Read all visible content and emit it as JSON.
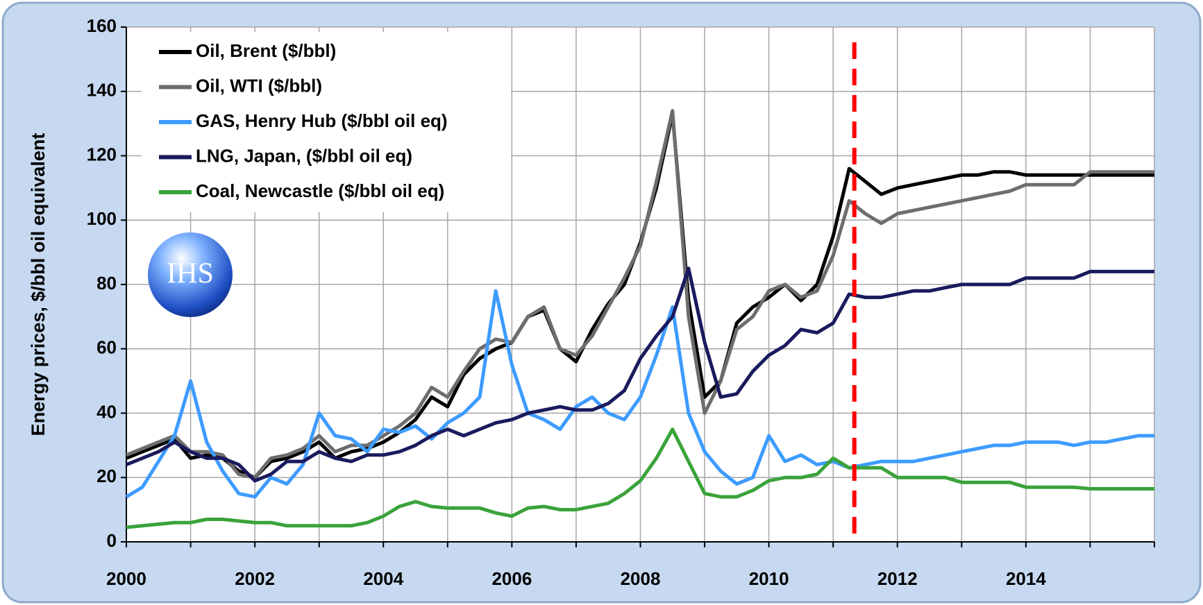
{
  "chart_data": {
    "type": "line",
    "y_label": "Energy prices, $/bbl oil equivalent",
    "logo": "IHS",
    "xlim": [
      2000,
      2016
    ],
    "xticks": [
      2000,
      2002,
      2004,
      2006,
      2008,
      2010,
      2012,
      2014
    ],
    "xminor": [
      2001,
      2003,
      2005,
      2007,
      2009,
      2011,
      2013,
      2015,
      2016
    ],
    "ylim": [
      0,
      160
    ],
    "yticks": [
      0,
      20,
      40,
      60,
      80,
      100,
      120,
      140,
      160
    ],
    "grid": true,
    "legend": "top-left",
    "vline": {
      "value": 2011.33,
      "color": "#ff0000"
    },
    "x": [
      2000,
      2000.25,
      2000.5,
      2000.75,
      2001,
      2001.25,
      2001.5,
      2001.75,
      2002,
      2002.25,
      2002.5,
      2002.75,
      2003,
      2003.25,
      2003.5,
      2003.75,
      2004,
      2004.25,
      2004.5,
      2004.75,
      2005,
      2005.25,
      2005.5,
      2005.75,
      2006,
      2006.25,
      2006.5,
      2006.75,
      2007,
      2007.25,
      2007.5,
      2007.75,
      2008,
      2008.25,
      2008.5,
      2008.75,
      2009,
      2009.25,
      2009.5,
      2009.75,
      2010,
      2010.25,
      2010.5,
      2010.75,
      2011,
      2011.25,
      2011.5,
      2011.75,
      2012,
      2012.25,
      2012.5,
      2012.75,
      2013,
      2013.25,
      2013.5,
      2013.75,
      2014,
      2014.25,
      2014.5,
      2014.75,
      2015,
      2015.25,
      2015.5,
      2015.75,
      2016
    ],
    "series": [
      {
        "name": "Oil, Brent ($/bbl)",
        "color": "#000000",
        "values": [
          26,
          28,
          30,
          32,
          26,
          27,
          26,
          22,
          20,
          25,
          26,
          28,
          31,
          26,
          28,
          29,
          31,
          34,
          38,
          45,
          42,
          52,
          57,
          60,
          62,
          70,
          72,
          60,
          56,
          66,
          74,
          80,
          93,
          110,
          133,
          75,
          45,
          50,
          68,
          73,
          76,
          80,
          75,
          80,
          95,
          116,
          112,
          108,
          110,
          111,
          112,
          113,
          114,
          114,
          115,
          115,
          114,
          114,
          114,
          114,
          114,
          114,
          114,
          114,
          114
        ]
      },
      {
        "name": "Oil, WTI ($/bbl)",
        "color": "#6d6d6d",
        "values": [
          27,
          29,
          31,
          33,
          28,
          28,
          27,
          21,
          20,
          26,
          27,
          29,
          33,
          28,
          30,
          30,
          33,
          36,
          40,
          48,
          45,
          53,
          60,
          63,
          62,
          70,
          73,
          60,
          58,
          64,
          73,
          82,
          92,
          112,
          134,
          70,
          40,
          50,
          66,
          70,
          78,
          80,
          76,
          78,
          89,
          106,
          102,
          99,
          102,
          103,
          104,
          105,
          106,
          107,
          108,
          109,
          111,
          111,
          111,
          111,
          115,
          115,
          115,
          115,
          115
        ]
      },
      {
        "name": "GAS, Henry Hub ($/bbl oil eq)",
        "color": "#3d9bff",
        "values": [
          14,
          17,
          25,
          33,
          50,
          31,
          22,
          15,
          14,
          20,
          18,
          24,
          40,
          33,
          32,
          28,
          35,
          34,
          36,
          32,
          37,
          40,
          45,
          78,
          55,
          40,
          38,
          35,
          42,
          45,
          40,
          38,
          45,
          58,
          73,
          40,
          28,
          22,
          18,
          20,
          33,
          25,
          27,
          24,
          25,
          23,
          24,
          25,
          25,
          25,
          26,
          27,
          28,
          29,
          30,
          30,
          31,
          31,
          31,
          30,
          31,
          31,
          32,
          33,
          33
        ]
      },
      {
        "name": "LNG, Japan, ($/bbl oil eq)",
        "color": "#1a1a5e",
        "values": [
          24,
          26,
          28,
          31,
          28,
          26,
          26,
          24,
          19,
          21,
          25,
          25,
          28,
          26,
          25,
          27,
          27,
          28,
          30,
          33,
          35,
          33,
          35,
          37,
          38,
          40,
          41,
          42,
          41,
          41,
          43,
          47,
          57,
          64,
          70,
          85,
          62,
          45,
          46,
          53,
          58,
          61,
          66,
          65,
          68,
          77,
          76,
          76,
          77,
          78,
          78,
          79,
          80,
          80,
          80,
          80,
          82,
          82,
          82,
          82,
          84,
          84,
          84,
          84,
          84
        ]
      },
      {
        "name": "Coal, Newcastle ($/bbl oil eq)",
        "color": "#3aa33a",
        "values": [
          4.5,
          5,
          5.5,
          6,
          6,
          7,
          7,
          6.5,
          6,
          6,
          5,
          5,
          5,
          5,
          5,
          6,
          8,
          11,
          12.5,
          11,
          10.5,
          10.5,
          10.5,
          9,
          8,
          10.5,
          11,
          10,
          10,
          11,
          12,
          15,
          19,
          26,
          35,
          25,
          15,
          14,
          14,
          16,
          19,
          20,
          20,
          21,
          26,
          23,
          23,
          23,
          20,
          20,
          20,
          20,
          18.5,
          18.5,
          18.5,
          18.5,
          17,
          17,
          17,
          17,
          16.5,
          16.5,
          16.5,
          16.5,
          16.5
        ]
      }
    ]
  }
}
